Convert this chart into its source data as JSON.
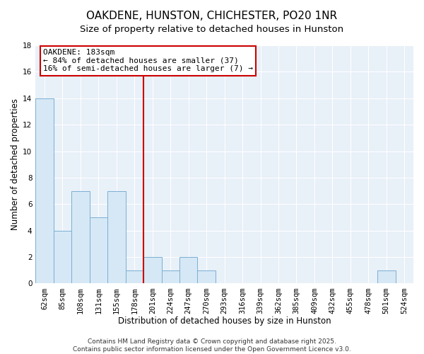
{
  "title": "OAKDENE, HUNSTON, CHICHESTER, PO20 1NR",
  "subtitle": "Size of property relative to detached houses in Hunston",
  "xlabel": "Distribution of detached houses by size in Hunston",
  "ylabel": "Number of detached properties",
  "bar_labels": [
    "62sqm",
    "85sqm",
    "108sqm",
    "131sqm",
    "155sqm",
    "178sqm",
    "201sqm",
    "224sqm",
    "247sqm",
    "270sqm",
    "293sqm",
    "316sqm",
    "339sqm",
    "362sqm",
    "385sqm",
    "409sqm",
    "432sqm",
    "455sqm",
    "478sqm",
    "501sqm",
    "524sqm"
  ],
  "bar_values": [
    14,
    4,
    7,
    5,
    7,
    1,
    2,
    1,
    2,
    1,
    0,
    0,
    0,
    0,
    0,
    0,
    0,
    0,
    0,
    1,
    0
  ],
  "bar_color": "#d6e8f5",
  "bar_edge_color": "#7aafd4",
  "ylim": [
    0,
    18
  ],
  "yticks": [
    0,
    2,
    4,
    6,
    8,
    10,
    12,
    14,
    16,
    18
  ],
  "vline_index": 5,
  "vline_color": "#cc0000",
  "annotation_line1": "OAKDENE: 183sqm",
  "annotation_line2": "← 84% of detached houses are smaller (37)",
  "annotation_line3": "16% of semi-detached houses are larger (7) →",
  "annotation_box_color": "#ffffff",
  "annotation_box_edge": "#cc0000",
  "footer_text": "Contains HM Land Registry data © Crown copyright and database right 2025.\nContains public sector information licensed under the Open Government Licence v3.0.",
  "bg_color": "#ffffff",
  "plot_bg_color": "#e8f0f8",
  "grid_color": "#ffffff",
  "title_fontsize": 11,
  "subtitle_fontsize": 9.5,
  "label_fontsize": 8.5,
  "tick_fontsize": 7.5,
  "annot_fontsize": 8,
  "footer_fontsize": 6.5
}
